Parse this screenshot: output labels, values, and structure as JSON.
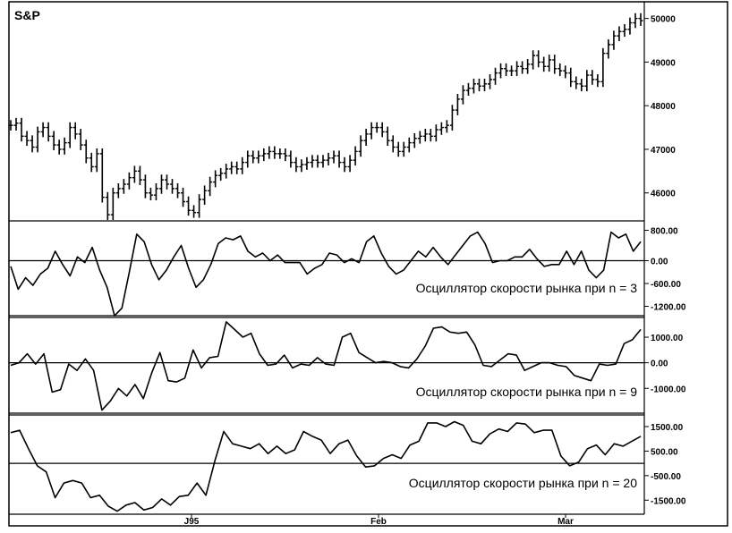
{
  "chart_data": [
    {
      "type": "ohlc",
      "title": "S&P",
      "ylim": [
        45400,
        50300
      ],
      "yticks": [
        46000,
        47000,
        48000,
        49000,
        50000
      ],
      "ytick_labels": [
        "46000",
        "47000",
        "48000",
        "49000",
        "50000"
      ],
      "values": [
        47550,
        47600,
        47300,
        47200,
        47050,
        47400,
        47500,
        47300,
        47100,
        47000,
        47150,
        47500,
        47350,
        47100,
        46800,
        46600,
        46900,
        45900,
        45500,
        46000,
        46100,
        46200,
        46350,
        46500,
        46300,
        46000,
        45950,
        46100,
        46300,
        46200,
        46100,
        46000,
        45800,
        45600,
        45550,
        45850,
        46050,
        46250,
        46400,
        46450,
        46550,
        46600,
        46550,
        46700,
        46850,
        46800,
        46850,
        46900,
        46950,
        46900,
        46900,
        46850,
        46700,
        46600,
        46650,
        46700,
        46750,
        46700,
        46750,
        46800,
        46850,
        46700,
        46600,
        46750,
        46950,
        47200,
        47350,
        47500,
        47500,
        47400,
        47200,
        47050,
        46950,
        47050,
        47150,
        47250,
        47300,
        47350,
        47300,
        47450,
        47500,
        47550,
        47900,
        48150,
        48350,
        48400,
        48500,
        48450,
        48500,
        48600,
        48750,
        48850,
        48800,
        48800,
        48900,
        48850,
        48950,
        49150,
        49000,
        48900,
        49050,
        48850,
        48800,
        48750,
        48550,
        48500,
        48450,
        48700,
        48600,
        48550,
        49200,
        49400,
        49600,
        49700,
        49750,
        49900,
        50000,
        49950
      ]
    },
    {
      "type": "line",
      "title": "Осциллятор скорости рынка при n = 3",
      "ylim": [
        -1400,
        1000
      ],
      "yticks": [
        800,
        0,
        -600,
        -1200
      ],
      "ytick_labels": [
        "800.00",
        "0.00",
        "-600.00",
        "-1200.00"
      ],
      "values": [
        -150,
        -750,
        -450,
        -650,
        -350,
        -200,
        250,
        -100,
        -400,
        100,
        -50,
        350,
        -250,
        -700,
        -1450,
        -1250,
        -300,
        700,
        500,
        -100,
        -500,
        -250,
        100,
        400,
        -200,
        -700,
        -500,
        -100,
        450,
        600,
        550,
        650,
        250,
        100,
        200,
        0,
        150,
        -50,
        -50,
        -50,
        -350,
        -200,
        -100,
        200,
        150,
        -50,
        50,
        -50,
        500,
        650,
        200,
        -150,
        -350,
        -250,
        0,
        250,
        100,
        350,
        100,
        -100,
        150,
        400,
        650,
        750,
        450,
        -50,
        0,
        0,
        100,
        100,
        300,
        50,
        -150,
        -100,
        -100,
        250,
        -100,
        250,
        -250,
        -450,
        -250,
        750,
        600,
        700,
        250,
        500
      ]
    },
    {
      "type": "line",
      "title": "Осциллятор скорости рынка при n = 9",
      "ylim": [
        -1900,
        1700
      ],
      "yticks": [
        1000,
        0,
        -1000
      ],
      "ytick_labels": [
        "1000.00",
        "0.00",
        "-1000.00"
      ],
      "values": [
        -100,
        0,
        350,
        -50,
        350,
        -1150,
        -1050,
        -50,
        -300,
        150,
        -300,
        -1850,
        -1500,
        -1000,
        -1300,
        -850,
        -1400,
        -400,
        400,
        -700,
        -750,
        -600,
        500,
        -200,
        200,
        250,
        1600,
        1300,
        1000,
        1150,
        350,
        -100,
        -50,
        300,
        -200,
        -50,
        -100,
        200,
        -50,
        -100,
        1000,
        1150,
        400,
        200,
        0,
        50,
        0,
        -150,
        -200,
        150,
        650,
        1350,
        1400,
        1200,
        1150,
        1200,
        700,
        -100,
        -150,
        100,
        350,
        300,
        -300,
        -150,
        0,
        0,
        -100,
        -150,
        -500,
        -600,
        -700,
        -50,
        -100,
        -50,
        750,
        900,
        1300
      ]
    },
    {
      "type": "line",
      "title": "Осциллятор скорости рынка при n = 20",
      "ylim": [
        -2000,
        1900
      ],
      "yticks": [
        1500,
        500,
        -500,
        -1500
      ],
      "ytick_labels": [
        "1500.00",
        "500.00",
        "-500.00",
        "-1500.00"
      ],
      "values": [
        1250,
        1350,
        600,
        -100,
        -350,
        -1400,
        -800,
        -700,
        -800,
        -1400,
        -1300,
        -1750,
        -1950,
        -1700,
        -1600,
        -1900,
        -1800,
        -1450,
        -1700,
        -1350,
        -1300,
        -800,
        -1300,
        100,
        1300,
        800,
        700,
        600,
        800,
        400,
        700,
        400,
        550,
        1300,
        1100,
        950,
        400,
        800,
        950,
        300,
        -150,
        -100,
        200,
        350,
        200,
        750,
        900,
        1650,
        1650,
        1500,
        1700,
        1550,
        900,
        800,
        1200,
        1400,
        1300,
        1650,
        1600,
        1250,
        1350,
        1350,
        300,
        -100,
        50,
        600,
        750,
        350,
        800,
        700,
        900,
        1100
      ]
    },
    {
      "type": "axis",
      "xticks": [
        "J95",
        "Feb",
        "Mar"
      ]
    }
  ]
}
